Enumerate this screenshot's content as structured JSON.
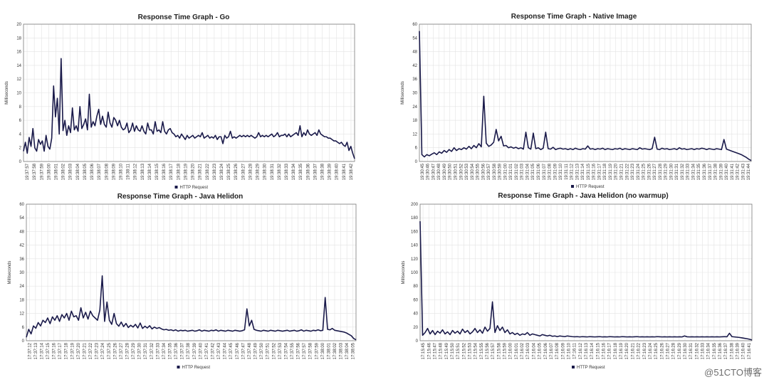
{
  "chart_data": [
    {
      "type": "line",
      "title": "Response Time Graph - Go",
      "ylabel": "Milliseconds",
      "xlabel": "",
      "ylim": [
        0,
        20
      ],
      "yticks": [
        0,
        2,
        4,
        6,
        8,
        10,
        12,
        14,
        16,
        18,
        20
      ],
      "grid": true,
      "legend": "bottom-center",
      "color": "#1a1a4a",
      "xticks": [
        "19:37:57",
        "19:37:58",
        "19:37:59",
        "19:38:00",
        "19:38:01",
        "19:38:02",
        "19:38:03",
        "19:38:04",
        "19:38:05",
        "19:38:06",
        "19:38:07",
        "19:38:08",
        "19:38:09",
        "19:38:10",
        "19:38:11",
        "19:38:12",
        "19:38:13",
        "19:38:14",
        "19:38:15",
        "19:38:16",
        "19:38:17",
        "19:38:18",
        "19:38:19",
        "19:38:20",
        "19:38:21",
        "19:38:22",
        "19:38:23",
        "19:38:24",
        "19:38:25",
        "19:38:26",
        "19:38:27",
        "19:38:28",
        "19:38:29",
        "19:38:30",
        "19:38:31",
        "19:38:32",
        "19:38:33",
        "19:38:34",
        "19:38:35",
        "19:38:36",
        "19:38:37",
        "19:38:38",
        "19:38:39",
        "19:38:40",
        "19:38:41",
        "19:38:42"
      ],
      "series": [
        {
          "name": "HTTP Request",
          "values": [
            1.5,
            2.8,
            1.2,
            3.5,
            2.2,
            4.8,
            2.0,
            1.5,
            3.2,
            2.5,
            3.0,
            1.5,
            3.8,
            2.2,
            1.8,
            3.4,
            11.0,
            6.5,
            9.2,
            4.0,
            15.0,
            4.5,
            6.0,
            3.8,
            5.2,
            4.2,
            7.8,
            4.6,
            5.2,
            4.4,
            8.0,
            4.8,
            5.4,
            6.2,
            4.6,
            9.8,
            5.0,
            5.8,
            5.2,
            6.6,
            7.6,
            5.4,
            6.6,
            5.4,
            5.0,
            7.2,
            5.6,
            5.0,
            6.4,
            6.0,
            5.2,
            6.0,
            5.0,
            4.6,
            4.8,
            5.6,
            4.2,
            4.6,
            5.6,
            4.4,
            5.2,
            4.6,
            4.4,
            5.2,
            4.4,
            4.0,
            5.6,
            4.6,
            4.6,
            4.0,
            5.8,
            4.4,
            4.6,
            4.2,
            5.8,
            4.4,
            4.0,
            4.6,
            4.8,
            4.2,
            4.0,
            3.6,
            3.8,
            3.4,
            4.0,
            3.6,
            3.2,
            3.8,
            3.4,
            3.6,
            3.8,
            3.4,
            3.6,
            3.8,
            3.6,
            4.2,
            3.4,
            3.6,
            3.8,
            3.4,
            3.6,
            3.4,
            3.8,
            3.2,
            3.6,
            3.6,
            2.6,
            3.8,
            3.4,
            3.6,
            4.4,
            3.4,
            3.6,
            3.4,
            3.6,
            3.8,
            3.6,
            3.8,
            3.6,
            3.8,
            3.6,
            3.8,
            3.6,
            3.4,
            3.6,
            4.2,
            3.6,
            3.8,
            3.6,
            3.8,
            3.6,
            3.8,
            4.0,
            3.6,
            3.8,
            4.2,
            3.6,
            3.8,
            3.8,
            4.0,
            3.6,
            4.0,
            3.6,
            3.8,
            4.0,
            4.2,
            3.8,
            5.2,
            3.6,
            4.2,
            3.8,
            4.6,
            4.0,
            3.8,
            4.0,
            4.2,
            3.8,
            4.6,
            4.0,
            3.8,
            3.6,
            3.6,
            3.4,
            3.4,
            3.2,
            3.0,
            3.0,
            2.8,
            2.6,
            2.8,
            2.4,
            2.2,
            2.8,
            1.6,
            2.2,
            1.2,
            0.4
          ]
        }
      ]
    },
    {
      "type": "line",
      "title": "Response Time Graph - Native Image",
      "ylabel": "Milliseconds",
      "xlabel": "",
      "ylim": [
        0,
        60
      ],
      "yticks": [
        0,
        6,
        12,
        18,
        24,
        30,
        36,
        42,
        48,
        54,
        60
      ],
      "grid": true,
      "legend": "bottom-center",
      "color": "#1a1a4a",
      "xticks": [
        "19:30:45",
        "19:30:46",
        "19:30:47",
        "19:30:48",
        "19:30:49",
        "19:30:50",
        "19:30:51",
        "19:30:52",
        "19:30:53",
        "19:30:54",
        "19:30:55",
        "19:30:56",
        "19:30:57",
        "19:30:58",
        "19:30:59",
        "19:31:00",
        "19:31:01",
        "19:31:02",
        "19:31:03",
        "19:31:04",
        "19:31:05",
        "19:31:06",
        "19:31:07",
        "19:31:08",
        "19:31:09",
        "19:31:10",
        "19:31:11",
        "19:31:12",
        "19:31:13",
        "19:31:14",
        "19:31:15",
        "19:31:16",
        "19:31:17",
        "19:31:18",
        "19:31:19",
        "19:31:20",
        "19:31:21",
        "19:31:22",
        "19:31:23",
        "19:31:24",
        "19:31:25",
        "19:31:26",
        "19:31:27",
        "19:31:28",
        "19:31:29",
        "19:31:30",
        "19:31:31",
        "19:31:32",
        "19:31:33",
        "19:31:34",
        "19:31:35",
        "19:31:36",
        "19:31:37",
        "19:31:38",
        "19:31:39",
        "19:31:40",
        "19:31:41",
        "19:31:42",
        "19:31:43",
        "19:31:44"
      ],
      "series": [
        {
          "name": "HTTP Request",
          "values": [
            57,
            3,
            2,
            3,
            2.5,
            3.2,
            3.8,
            3,
            4.2,
            3.6,
            4.8,
            4,
            5.2,
            4.4,
            6,
            4.8,
            5.6,
            5.2,
            6,
            5.4,
            6.6,
            5.6,
            7,
            6,
            7.8,
            6.4,
            28.5,
            8,
            6.6,
            7.2,
            8.4,
            14,
            9,
            11,
            6.8,
            7,
            6,
            6.4,
            5.8,
            6.2,
            5.6,
            6,
            5.4,
            12.8,
            6,
            5.4,
            12.4,
            5.6,
            6,
            5.2,
            5.8,
            12.8,
            5.6,
            5.4,
            6.2,
            5.2,
            5.6,
            5.8,
            5.4,
            5.6,
            5.2,
            5.6,
            5.2,
            5.8,
            5.4,
            5.2,
            5.6,
            5.4,
            6.8,
            5.4,
            5.6,
            5.2,
            5.6,
            5.4,
            5.8,
            5.2,
            5.6,
            5.4,
            5.2,
            5.6,
            5.4,
            5.8,
            5.2,
            5.6,
            5.4,
            5.2,
            5.6,
            5.4,
            5.2,
            6,
            5.4,
            5.6,
            5.4,
            5.2,
            5.6,
            10.6,
            5.4,
            5.2,
            5.8,
            5.4,
            5.6,
            5.2,
            5.4,
            5.6,
            5.2,
            6,
            5.4,
            5.6,
            5.2,
            5.4,
            5.6,
            5.2,
            5.6,
            5.4,
            5.8,
            5.6,
            5.2,
            5.6,
            5.4,
            5.2,
            5.6,
            5.4,
            5.2,
            9.6,
            5.4,
            5,
            4.6,
            4.2,
            3.8,
            3.4,
            3,
            2.4,
            1.8,
            1,
            0.4
          ]
        }
      ]
    },
    {
      "type": "line",
      "title": "Response Time Graph - Java Helidon",
      "ylabel": "Milliseconds",
      "xlabel": "",
      "ylim": [
        0,
        60
      ],
      "yticks": [
        0,
        6,
        12,
        18,
        24,
        30,
        36,
        42,
        48,
        54,
        60
      ],
      "grid": true,
      "legend": "bottom-center",
      "color": "#1a1a4a",
      "xticks": [
        "17:37:12",
        "17:37:13",
        "17:37:14",
        "17:37:15",
        "17:37:16",
        "17:37:17",
        "17:37:18",
        "17:37:19",
        "17:37:20",
        "17:37:21",
        "17:37:22",
        "17:37:23",
        "17:37:24",
        "17:37:25",
        "17:37:26",
        "17:37:27",
        "17:37:28",
        "17:37:29",
        "17:37:30",
        "17:37:31",
        "17:37:32",
        "17:37:33",
        "17:37:34",
        "17:37:35",
        "17:37:36",
        "17:37:37",
        "17:37:38",
        "17:37:39",
        "17:37:40",
        "17:37:41",
        "17:37:42",
        "17:37:43",
        "17:37:44",
        "17:37:45",
        "17:37:46",
        "17:37:47",
        "17:37:48",
        "17:37:49",
        "17:37:50",
        "17:37:51",
        "17:37:52",
        "17:37:53",
        "17:37:54",
        "17:37:55",
        "17:37:56",
        "17:37:57",
        "17:37:58",
        "17:37:59",
        "17:38:00",
        "17:38:01",
        "17:38:02",
        "17:38:03",
        "17:38:04",
        "17:38:05"
      ],
      "series": [
        {
          "name": "HTTP Request",
          "values": [
            1.5,
            5,
            3,
            6.5,
            5.5,
            8,
            6.5,
            9,
            8,
            10,
            7.5,
            10.5,
            9,
            11,
            8.5,
            11.5,
            10,
            12,
            9,
            13,
            10.5,
            11,
            9,
            14.5,
            10,
            12.5,
            9.5,
            13,
            11,
            10,
            9,
            13.5,
            28.5,
            8.5,
            17,
            9,
            7.2,
            12,
            7.5,
            6.4,
            8.2,
            6.2,
            7.6,
            5.8,
            6.8,
            6,
            7.2,
            5.6,
            7.8,
            5.4,
            6.4,
            5.6,
            6.6,
            5.2,
            6,
            5.4,
            5.8,
            5.2,
            4.8,
            5,
            4.6,
            4.8,
            4.4,
            4.8,
            4.2,
            4.6,
            4.4,
            4.6,
            4.2,
            4.4,
            4.6,
            4.2,
            4.4,
            4.8,
            4.2,
            4.6,
            4.4,
            4.2,
            4.6,
            4.4,
            4.8,
            4.2,
            4.6,
            4.4,
            4.2,
            4.6,
            4.4,
            4.2,
            4.6,
            4.4,
            4.2,
            4.4,
            4.8,
            14,
            6.5,
            9,
            5,
            4.6,
            4.4,
            4.2,
            4.6,
            4.4,
            4.2,
            4.6,
            4.4,
            4.2,
            4.6,
            4.4,
            4.2,
            4.4,
            4.6,
            4.2,
            4.4,
            4.6,
            4.2,
            4.4,
            4.8,
            4.2,
            4.6,
            4.4,
            4.2,
            4.6,
            4.4,
            4.8,
            4.4,
            4.6,
            19,
            5,
            4.8,
            5.4,
            4.6,
            4.4,
            4.2,
            4,
            3.8,
            3.4,
            2.8,
            2.2,
            1,
            0.4
          ]
        }
      ]
    },
    {
      "type": "line",
      "title": "Response Time Graph - Java Helidon (no warmup)",
      "ylabel": "Milliseconds",
      "xlabel": "",
      "ylim": [
        0,
        200
      ],
      "yticks": [
        0,
        20,
        40,
        60,
        80,
        100,
        120,
        140,
        160,
        180,
        200
      ],
      "grid": true,
      "legend": "bottom-center",
      "color": "#1a1a4a",
      "xticks": [
        "17:15:45",
        "17:15:46",
        "17:15:47",
        "17:15:48",
        "17:15:49",
        "17:15:50",
        "17:15:51",
        "17:15:52",
        "17:15:53",
        "17:15:54",
        "17:15:55",
        "17:15:56",
        "17:15:57",
        "17:15:58",
        "17:15:59",
        "17:16:00",
        "17:16:01",
        "17:16:02",
        "17:16:03",
        "17:16:04",
        "17:16:05",
        "17:16:06",
        "17:16:07",
        "17:16:08",
        "17:16:09",
        "17:16:10",
        "17:16:11",
        "17:16:12",
        "17:16:13",
        "17:16:14",
        "17:16:15",
        "17:16:16",
        "17:16:17",
        "17:16:18",
        "17:16:19",
        "17:16:20",
        "17:16:21",
        "17:16:22",
        "17:16:23",
        "17:16:24",
        "17:16:25",
        "17:16:26",
        "17:16:27",
        "17:16:28",
        "17:16:29",
        "17:16:30",
        "17:16:31",
        "17:16:32",
        "17:16:33",
        "17:16:34",
        "17:16:35",
        "17:16:36",
        "17:16:37",
        "17:16:38",
        "17:16:39",
        "17:16:40",
        "17:16:41"
      ],
      "series": [
        {
          "name": "HTTP Request",
          "values": [
            175,
            8,
            12,
            18,
            10,
            15,
            9,
            14,
            11,
            16,
            10,
            13,
            9,
            15,
            11,
            14,
            10,
            17,
            12,
            15,
            10,
            13,
            18,
            12,
            16,
            11,
            20,
            14,
            18,
            57,
            12,
            22,
            15,
            20,
            12,
            16,
            10,
            12,
            9,
            11,
            8,
            10,
            9,
            12,
            8,
            10,
            9,
            8,
            7,
            9,
            8,
            7,
            8,
            6.5,
            7,
            6,
            7,
            6.5,
            6,
            7,
            6.5,
            6,
            5.8,
            6,
            5.6,
            6,
            5.8,
            5.6,
            6,
            5.8,
            5.6,
            5.8,
            6,
            5.6,
            5.8,
            5.6,
            6,
            5.8,
            5.6,
            5.8,
            5.6,
            6,
            5.8,
            5.6,
            5.8,
            5.6,
            5.8,
            6,
            5.6,
            5.8,
            5.6,
            5.8,
            5.6,
            5.8,
            5.6,
            6,
            5.8,
            5.6,
            5.8,
            5.6,
            5.8,
            5.6,
            5.8,
            5.6,
            5.8,
            5.6,
            7,
            5.8,
            5.6,
            5.8,
            5.6,
            5.8,
            5.6,
            5.8,
            5.6,
            5.8,
            5.6,
            5.8,
            5.6,
            5.8,
            5.6,
            5.8,
            6,
            5.8,
            11,
            6,
            5.6,
            5.2,
            4.8,
            4.2,
            3.6,
            3,
            2.2,
            1.2
          ]
        }
      ]
    }
  ],
  "watermark": "@51CTO博客"
}
